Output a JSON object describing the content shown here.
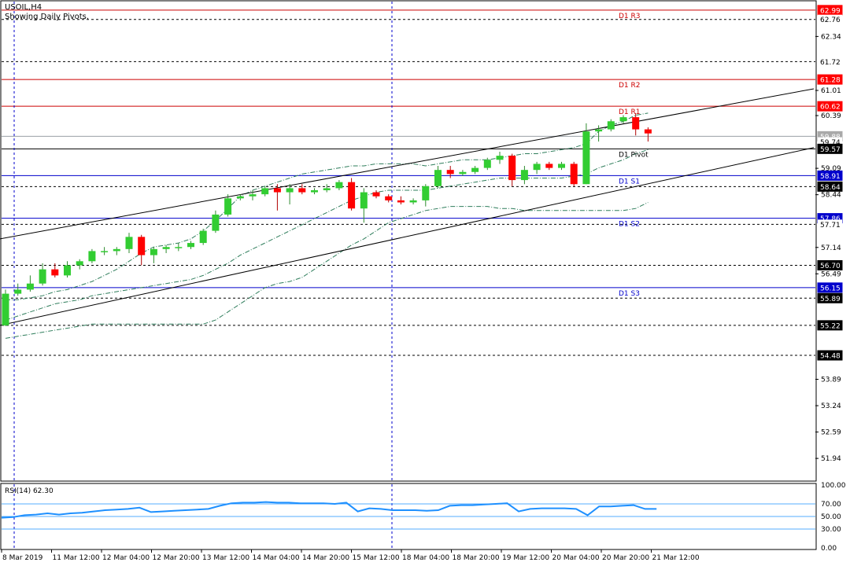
{
  "chart_data": {
    "type": "candlestick",
    "symbol_line": "USOIL,H4",
    "subtitle": "Showing Daily Pivots.",
    "ylim": [
      51.4,
      63.2
    ],
    "price_ticks": [
      "62.34",
      "61.01",
      "60.39",
      "59.09",
      "58.44",
      "57.14",
      "56.49",
      "53.89",
      "53.24",
      "52.59",
      "51.94"
    ],
    "price_labels": [
      {
        "value": 62.99,
        "text": "62.99",
        "bg": "#ff0000",
        "color": "#ffffff"
      },
      {
        "value": 62.76,
        "text": "62.76",
        "bg": "#ffffff",
        "color": "#000000"
      },
      {
        "value": 61.72,
        "text": "61.72",
        "bg": "#ffffff",
        "color": "#000000"
      },
      {
        "value": 61.28,
        "text": "61.28",
        "bg": "#ff0000",
        "color": "#ffffff"
      },
      {
        "value": 60.62,
        "text": "60.62",
        "bg": "#ff0000",
        "color": "#ffffff"
      },
      {
        "value": 59.88,
        "text": "59.88",
        "bg": "#a9a9a9",
        "color": "#ffffff"
      },
      {
        "value": 59.74,
        "text": "59.74",
        "bg": "#ffffff",
        "color": "#000000"
      },
      {
        "value": 59.57,
        "text": "59.57",
        "bg": "#000000",
        "color": "#ffffff"
      },
      {
        "value": 58.91,
        "text": "58.91",
        "bg": "#0000cc",
        "color": "#ffffff"
      },
      {
        "value": 58.64,
        "text": "58.64",
        "bg": "#000000",
        "color": "#ffffff"
      },
      {
        "value": 57.86,
        "text": "57.86",
        "bg": "#0000cc",
        "color": "#ffffff"
      },
      {
        "value": 57.71,
        "text": "57.71",
        "bg": "#ffffff",
        "color": "#000000"
      },
      {
        "value": 56.7,
        "text": "56.70",
        "bg": "#000000",
        "color": "#ffffff"
      },
      {
        "value": 56.15,
        "text": "56.15",
        "bg": "#0000cc",
        "color": "#ffffff"
      },
      {
        "value": 55.89,
        "text": "55.89",
        "bg": "#000000",
        "color": "#ffffff"
      },
      {
        "value": 55.22,
        "text": "55.22",
        "bg": "#000000",
        "color": "#ffffff"
      },
      {
        "value": 54.48,
        "text": "54.48",
        "bg": "#000000",
        "color": "#ffffff"
      }
    ],
    "pivots": [
      {
        "name": "D1 R3",
        "value": 62.99,
        "color": "#cc0000"
      },
      {
        "name": "D1 R2",
        "value": 61.28,
        "color": "#cc0000"
      },
      {
        "name": "D1 R1",
        "value": 60.62,
        "color": "#cc0000"
      },
      {
        "name": "D1 Pivot",
        "value": 59.57,
        "color": "#000000"
      },
      {
        "name": "D1 S1",
        "value": 58.91,
        "color": "#0000cc"
      },
      {
        "name": "D1 S2",
        "value": 57.86,
        "color": "#0000cc"
      },
      {
        "name": "D1 S3",
        "value": 56.15,
        "color": "#0000cc"
      }
    ],
    "dashed_levels": [
      62.76,
      61.72,
      58.64,
      57.71,
      56.7,
      55.89,
      55.22,
      54.48
    ],
    "gray_level": 59.88,
    "candles": [
      {
        "o": 55.22,
        "h": 56.1,
        "l": 55.2,
        "c": 56.0
      },
      {
        "o": 56.0,
        "h": 56.25,
        "l": 55.95,
        "c": 56.1
      },
      {
        "o": 56.1,
        "h": 56.45,
        "l": 56.05,
        "c": 56.25
      },
      {
        "o": 56.25,
        "h": 56.75,
        "l": 56.2,
        "c": 56.6
      },
      {
        "o": 56.6,
        "h": 56.75,
        "l": 56.4,
        "c": 56.45
      },
      {
        "o": 56.45,
        "h": 56.8,
        "l": 56.4,
        "c": 56.7
      },
      {
        "o": 56.7,
        "h": 56.85,
        "l": 56.6,
        "c": 56.8
      },
      {
        "o": 56.8,
        "h": 57.1,
        "l": 56.75,
        "c": 57.05
      },
      {
        "o": 57.05,
        "h": 57.15,
        "l": 56.95,
        "c": 57.05
      },
      {
        "o": 57.05,
        "h": 57.15,
        "l": 56.95,
        "c": 57.1
      },
      {
        "o": 57.1,
        "h": 57.5,
        "l": 57.0,
        "c": 57.4
      },
      {
        "o": 57.4,
        "h": 57.45,
        "l": 56.7,
        "c": 56.95
      },
      {
        "o": 56.95,
        "h": 57.15,
        "l": 56.75,
        "c": 57.1
      },
      {
        "o": 57.1,
        "h": 57.2,
        "l": 57.0,
        "c": 57.15
      },
      {
        "o": 57.15,
        "h": 57.25,
        "l": 57.05,
        "c": 57.15
      },
      {
        "o": 57.15,
        "h": 57.3,
        "l": 57.1,
        "c": 57.25
      },
      {
        "o": 57.25,
        "h": 57.6,
        "l": 57.2,
        "c": 57.55
      },
      {
        "o": 57.55,
        "h": 58.05,
        "l": 57.5,
        "c": 57.95
      },
      {
        "o": 57.95,
        "h": 58.45,
        "l": 57.9,
        "c": 58.35
      },
      {
        "o": 58.35,
        "h": 58.45,
        "l": 58.3,
        "c": 58.4
      },
      {
        "o": 58.4,
        "h": 58.55,
        "l": 58.3,
        "c": 58.45
      },
      {
        "o": 58.45,
        "h": 58.65,
        "l": 58.4,
        "c": 58.6
      },
      {
        "o": 58.6,
        "h": 58.7,
        "l": 58.05,
        "c": 58.5
      },
      {
        "o": 58.5,
        "h": 58.7,
        "l": 58.2,
        "c": 58.6
      },
      {
        "o": 58.6,
        "h": 58.7,
        "l": 58.45,
        "c": 58.5
      },
      {
        "o": 58.5,
        "h": 58.6,
        "l": 58.45,
        "c": 58.55
      },
      {
        "o": 58.55,
        "h": 58.7,
        "l": 58.5,
        "c": 58.6
      },
      {
        "o": 58.6,
        "h": 58.8,
        "l": 58.55,
        "c": 58.75
      },
      {
        "o": 58.75,
        "h": 58.85,
        "l": 58.05,
        "c": 58.1
      },
      {
        "o": 58.1,
        "h": 58.6,
        "l": 57.75,
        "c": 58.5
      },
      {
        "o": 58.5,
        "h": 58.55,
        "l": 58.35,
        "c": 58.4
      },
      {
        "o": 58.4,
        "h": 58.45,
        "l": 58.25,
        "c": 58.3
      },
      {
        "o": 58.3,
        "h": 58.4,
        "l": 58.2,
        "c": 58.25
      },
      {
        "o": 58.25,
        "h": 58.35,
        "l": 58.2,
        "c": 58.3
      },
      {
        "o": 58.3,
        "h": 58.7,
        "l": 58.15,
        "c": 58.65
      },
      {
        "o": 58.65,
        "h": 59.15,
        "l": 58.6,
        "c": 59.05
      },
      {
        "o": 59.05,
        "h": 59.15,
        "l": 58.85,
        "c": 58.95
      },
      {
        "o": 58.95,
        "h": 59.05,
        "l": 58.9,
        "c": 59.0
      },
      {
        "o": 59.0,
        "h": 59.15,
        "l": 58.95,
        "c": 59.1
      },
      {
        "o": 59.1,
        "h": 59.35,
        "l": 59.05,
        "c": 59.3
      },
      {
        "o": 59.3,
        "h": 59.5,
        "l": 59.2,
        "c": 59.4
      },
      {
        "o": 59.4,
        "h": 59.45,
        "l": 58.65,
        "c": 58.8
      },
      {
        "o": 58.8,
        "h": 59.15,
        "l": 58.7,
        "c": 59.05
      },
      {
        "o": 59.05,
        "h": 59.25,
        "l": 58.95,
        "c": 59.2
      },
      {
        "o": 59.2,
        "h": 59.25,
        "l": 59.05,
        "c": 59.1
      },
      {
        "o": 59.1,
        "h": 59.25,
        "l": 59.05,
        "c": 59.2
      },
      {
        "o": 59.2,
        "h": 59.25,
        "l": 58.65,
        "c": 58.7
      },
      {
        "o": 58.7,
        "h": 60.2,
        "l": 58.7,
        "c": 60.0
      },
      {
        "o": 60.0,
        "h": 60.15,
        "l": 59.75,
        "c": 60.05
      },
      {
        "o": 60.05,
        "h": 60.3,
        "l": 60.0,
        "c": 60.25
      },
      {
        "o": 60.25,
        "h": 60.4,
        "l": 60.2,
        "c": 60.35
      },
      {
        "o": 60.35,
        "h": 60.45,
        "l": 59.9,
        "c": 60.05
      },
      {
        "o": 60.05,
        "h": 60.1,
        "l": 59.75,
        "c": 59.95
      }
    ],
    "bands": {
      "upper": [
        55.85,
        55.85,
        55.9,
        55.95,
        56.05,
        56.1,
        56.2,
        56.3,
        56.45,
        56.6,
        56.8,
        57.0,
        57.15,
        57.2,
        57.25,
        57.35,
        57.55,
        57.8,
        58.1,
        58.4,
        58.55,
        58.65,
        58.75,
        58.85,
        58.95,
        59.0,
        59.05,
        59.1,
        59.15,
        59.15,
        59.2,
        59.2,
        59.2,
        59.2,
        59.15,
        59.2,
        59.25,
        59.3,
        59.3,
        59.3,
        59.35,
        59.4,
        59.45,
        59.45,
        59.5,
        59.55,
        59.6,
        59.7,
        60.0,
        60.15,
        60.25,
        60.4,
        60.45
      ],
      "middle": [
        55.35,
        55.45,
        55.55,
        55.65,
        55.75,
        55.8,
        55.85,
        55.95,
        56.0,
        56.05,
        56.1,
        56.15,
        56.2,
        56.25,
        56.3,
        56.35,
        56.45,
        56.6,
        56.75,
        56.95,
        57.1,
        57.25,
        57.4,
        57.55,
        57.7,
        57.85,
        58.0,
        58.15,
        58.3,
        58.4,
        58.5,
        58.55,
        58.55,
        58.55,
        58.55,
        58.6,
        58.65,
        58.7,
        58.75,
        58.8,
        58.85,
        58.85,
        58.85,
        58.85,
        58.85,
        58.85,
        58.9,
        58.95,
        59.1,
        59.2,
        59.3,
        59.45,
        59.55
      ],
      "lower": [
        54.9,
        54.95,
        55.0,
        55.05,
        55.1,
        55.15,
        55.2,
        55.25,
        55.25,
        55.25,
        55.25,
        55.25,
        55.25,
        55.25,
        55.25,
        55.25,
        55.25,
        55.35,
        55.55,
        55.75,
        55.95,
        56.15,
        56.25,
        56.3,
        56.4,
        56.6,
        56.8,
        57.0,
        57.2,
        57.35,
        57.55,
        57.75,
        57.85,
        57.95,
        58.05,
        58.1,
        58.15,
        58.15,
        58.15,
        58.15,
        58.1,
        58.1,
        58.05,
        58.05,
        58.05,
        58.05,
        58.05,
        58.05,
        58.05,
        58.05,
        58.05,
        58.1,
        58.25
      ]
    },
    "channel_lines": [
      {
        "x0": 0,
        "y0": 57.35,
        "x1": 1034,
        "y1": 61.05
      },
      {
        "x0": 0,
        "y0": 55.22,
        "x1": 1034,
        "y1": 59.6
      }
    ],
    "vertical_lines": [
      18,
      498
    ],
    "time_labels": [
      "8 Mar 2019",
      "11 Mar 12:00",
      "12 Mar 04:00",
      "12 Mar 20:00",
      "13 Mar 12:00",
      "14 Mar 04:00",
      "14 Mar 20:00",
      "15 Mar 12:00",
      "18 Mar 04:00",
      "18 Mar 20:00",
      "19 Mar 12:00",
      "20 Mar 04:00",
      "20 Mar 20:00",
      "21 Mar 12:00"
    ],
    "rsi": {
      "label": "RSI(14) 62.30",
      "ylim": [
        0,
        100
      ],
      "ticks": [
        "100.00",
        "70.00",
        "50.00",
        "30.00",
        "0.00"
      ],
      "levels": [
        70,
        50,
        30
      ],
      "values": [
        48,
        49,
        52,
        53,
        55,
        53,
        55,
        56,
        58,
        60,
        61,
        62,
        64,
        57,
        58,
        59,
        60,
        61,
        62,
        67,
        71,
        72,
        72,
        73,
        72,
        72,
        71,
        71,
        71,
        70,
        72,
        58,
        63,
        62,
        60,
        60,
        60,
        59,
        60,
        67,
        68,
        68,
        69,
        70,
        71,
        58,
        62,
        63,
        63,
        63,
        62,
        52,
        66,
        66,
        67,
        68,
        62,
        62
      ]
    }
  }
}
